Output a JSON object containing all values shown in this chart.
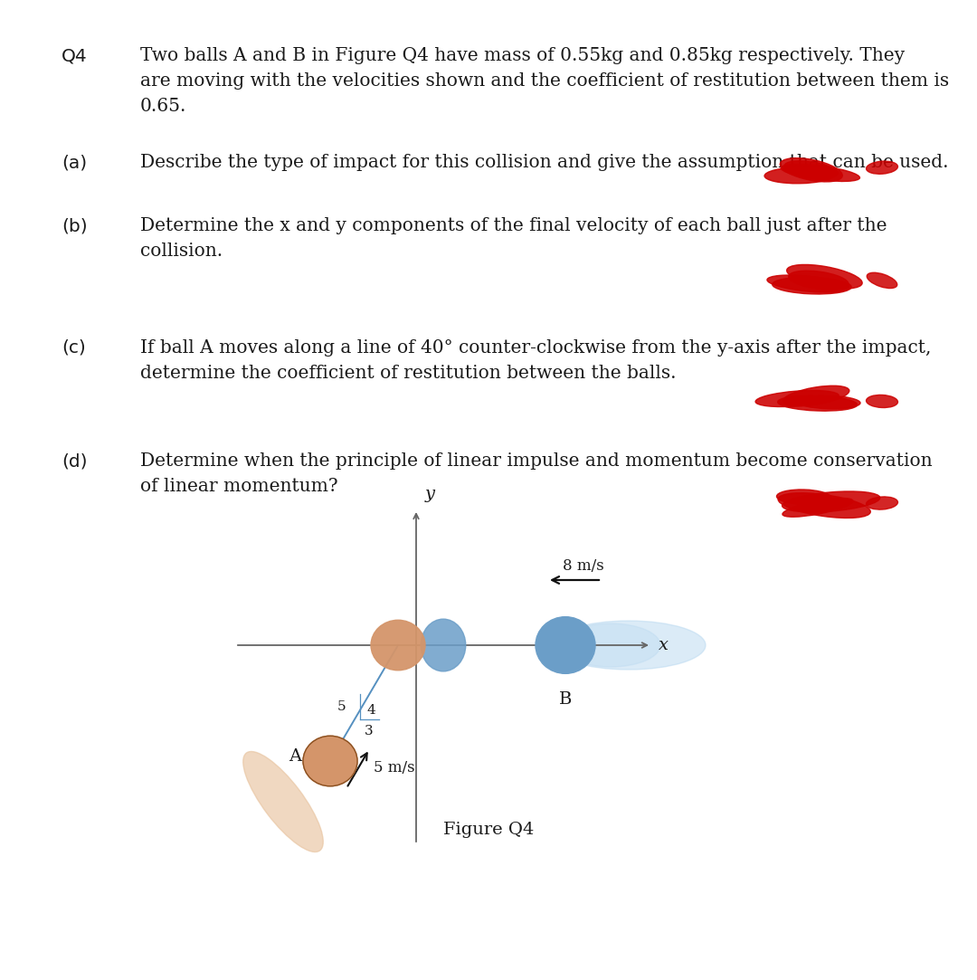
{
  "background_color": "#ffffff",
  "question_label": "Q4",
  "question_text_line1": "Two balls A and B in Figure Q4 have mass of 0.55kg and 0.85kg respectively. They",
  "question_text_line2": "are moving with the velocities shown and the coefficient of restitution between them is",
  "question_text_line3": "0.65.",
  "part_a_label": "(a)",
  "part_a_text": "Describe the type of impact for this collision and give the assumption that can be used.",
  "part_b_label": "(b)",
  "part_b_text_line1": "Determine the x and y components of the final velocity of each ball just after the",
  "part_b_text_line2": "collision.",
  "part_c_label": "(c)",
  "part_c_text_line1": "If ball A moves along a line of 40° counter-clockwise from the y-axis after the impact,",
  "part_c_text_line2": "determine the coefficient of restitution between the balls.",
  "part_d_label": "(d)",
  "part_d_text_line1": "Determine when the principle of linear impulse and momentum become conservation",
  "part_d_text_line2": "of linear momentum?",
  "fig_caption": "Figure Q4",
  "ball_A_color": "#D4956A",
  "ball_A_trail_color": "#E8C4A0",
  "ball_B_color": "#6B9EC8",
  "ball_B_trail_color": "#B8D8F0",
  "axis_color": "#888888",
  "text_color": "#1a1a1a",
  "red_mark_color": "#CC0000",
  "font_size_text": 14.5,
  "font_size_label": 14.5
}
